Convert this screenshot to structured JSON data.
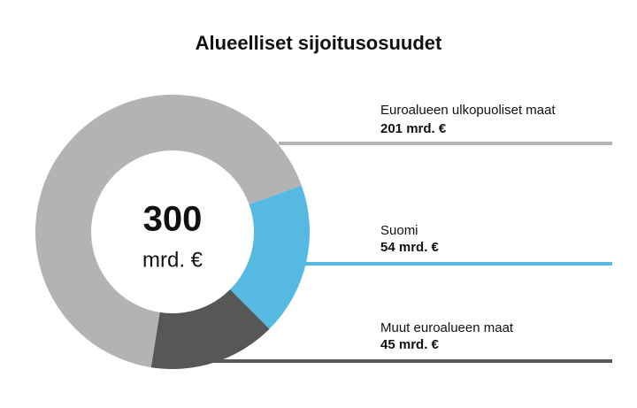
{
  "chart_data": {
    "type": "donut",
    "title": "Alueelliset sijoitusosuudet",
    "center_value": 300,
    "center_unit": "mrd. €",
    "categories": [
      "Euroalueen ulkopuoliset maat",
      "Suomi",
      "Muut euroalueen maat"
    ],
    "values": [
      201,
      54,
      45
    ],
    "value_labels": [
      "201 mrd. €",
      "54 mrd. €",
      "45 mrd. €"
    ],
    "colors": [
      "#b3b3b3",
      "#55b9e1",
      "#575757"
    ]
  }
}
